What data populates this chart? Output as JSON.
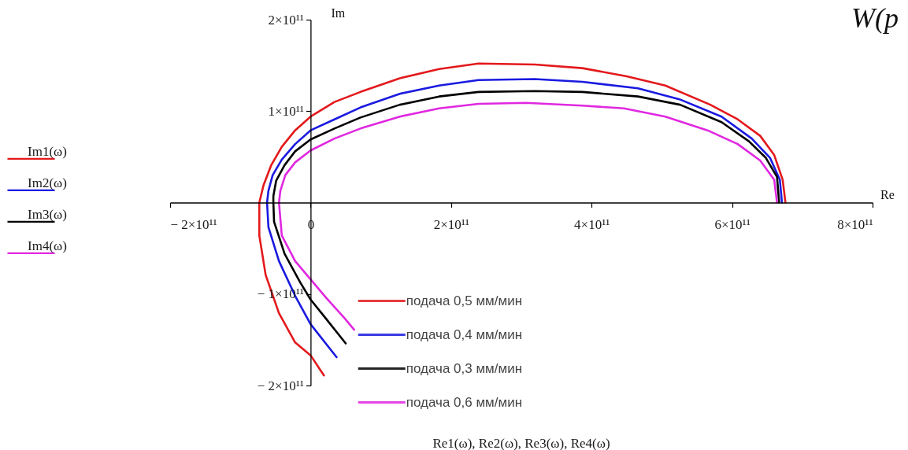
{
  "chart_data": {
    "type": "line",
    "xlabel": "Re1(ω), Re2(ω), Re3(ω), Re4(ω)",
    "ylabel": "Im1(ω)\nIm2(ω)\nIm3(ω)\nIm4(ω)",
    "annotations": [
      "Im",
      "Re",
      "W(p"
    ],
    "xlim": [
      -200000000000.0,
      800000000000.0
    ],
    "ylim": [
      -200000000000.0,
      200000000000.0
    ],
    "xticks": [
      {
        "value": -200000000000.0,
        "label": "− 2×10¹¹"
      },
      0,
      {
        "value": 200000000000.0,
        "label": "2×10¹¹"
      },
      {
        "value": 400000000000.0,
        "label": "4×10¹¹"
      },
      {
        "value": 600000000000.0,
        "label": "6×10¹¹"
      },
      {
        "value": 800000000000.0,
        "label": "8×10¹¹"
      }
    ],
    "yticks": [
      {
        "value": -200000000000.0,
        "label": "− 2×10¹¹"
      },
      {
        "value": -100000000000.0,
        "label": "− 1×10¹¹"
      },
      {
        "value": 100000000000.0,
        "label": "1×10¹¹"
      },
      {
        "value": 200000000000.0,
        "label": "2×10¹¹"
      }
    ],
    "legend": "bottom",
    "series": [
      {
        "name": "подача 0,5 мм/мин",
        "color": "#e3191c",
        "x": [
          676000000000.0,
          672000000000.0,
          660000000000.0,
          640000000000.0,
          608000000000.0,
          569000000000.0,
          505000000000.0,
          450000000000.0,
          387000000000.0,
          319000000000.0,
          239000000000.0,
          183000000000.0,
          127000000000.0,
          71000000000.0,
          34000000000.0,
          0,
          -22000000000.0,
          -41000000000.0,
          -56000000000.0,
          -67000000000.0,
          -73000000000.0,
          -73000000000.0,
          -64000000000.0,
          -45000000000.0,
          -22000000000.0,
          0,
          19000000000.0
        ],
        "values": [
          0,
          25000000000.0,
          52000000000.0,
          73000000000.0,
          91000000000.0,
          107000000000.0,
          128000000000.0,
          138000000000.0,
          147000000000.0,
          151000000000.0,
          152000000000.0,
          146000000000.0,
          136000000000.0,
          121000000000.0,
          110000000000.0,
          94000000000.0,
          79000000000.0,
          61000000000.0,
          41000000000.0,
          19000000000.0,
          0,
          -36000000000.0,
          -79000000000.0,
          -121000000000.0,
          -153000000000.0,
          -167000000000.0,
          -189000000000.0
        ]
      },
      {
        "name": "подача 0,4 мм/мин",
        "color": "#1a1ae0",
        "x": [
          671000000000.0,
          668000000000.0,
          654000000000.0,
          628000000000.0,
          585000000000.0,
          525000000000.0,
          466000000000.0,
          387000000000.0,
          319000000000.0,
          239000000000.0,
          183000000000.0,
          127000000000.0,
          71000000000.0,
          34000000000.0,
          0,
          -22000000000.0,
          -41000000000.0,
          -54000000000.0,
          -60000000000.0,
          -62000000000.0,
          -60000000000.0,
          -45000000000.0,
          -22000000000.0,
          0,
          37000000000.0
        ],
        "values": [
          0,
          25000000000.0,
          49000000000.0,
          70000000000.0,
          94000000000.0,
          113000000000.0,
          125000000000.0,
          132000000000.0,
          135000000000.0,
          134000000000.0,
          128000000000.0,
          119000000000.0,
          104000000000.0,
          91000000000.0,
          79000000000.0,
          64000000000.0,
          47000000000.0,
          30000000000.0,
          13000000000.0,
          0,
          -27000000000.0,
          -64000000000.0,
          -102000000000.0,
          -133000000000.0,
          -169000000000.0
        ]
      },
      {
        "name": "подача 0,3 мм/мин",
        "color": "#000000",
        "x": [
          667000000000.0,
          664000000000.0,
          648000000000.0,
          624000000000.0,
          585000000000.0,
          526000000000.0,
          466000000000.0,
          387000000000.0,
          319000000000.0,
          239000000000.0,
          183000000000.0,
          127000000000.0,
          71000000000.0,
          34000000000.0,
          0,
          -22000000000.0,
          -37000000000.0,
          -49000000000.0,
          -53000000000.0,
          -53000000000.0,
          -52000000000.0,
          -37000000000.0,
          -15000000000.0,
          0,
          22000000000.0,
          50000000000.0
        ],
        "values": [
          0,
          28000000000.0,
          49000000000.0,
          67000000000.0,
          88000000000.0,
          107000000000.0,
          116000000000.0,
          121000000000.0,
          122000000000.0,
          121000000000.0,
          116000000000.0,
          107000000000.0,
          93000000000.0,
          81000000000.0,
          69000000000.0,
          56000000000.0,
          41000000000.0,
          24000000000.0,
          7000000000.0,
          0,
          -21000000000.0,
          -56000000000.0,
          -87000000000.0,
          -106000000000.0,
          -127000000000.0,
          -154000000000.0
        ]
      },
      {
        "name": "подача 0,6 мм/мин",
        "color": "#e028e0",
        "x": [
          664000000000.0,
          660000000000.0,
          640000000000.0,
          608000000000.0,
          565000000000.0,
          505000000000.0,
          446000000000.0,
          387000000000.0,
          307000000000.0,
          239000000000.0,
          183000000000.0,
          127000000000.0,
          71000000000.0,
          34000000000.0,
          0,
          -22000000000.0,
          -36000000000.0,
          -43000000000.0,
          -45000000000.0,
          -41000000000.0,
          -22000000000.0,
          0,
          22000000000.0,
          49000000000.0,
          62000000000.0
        ],
        "values": [
          0,
          25000000000.0,
          46000000000.0,
          64000000000.0,
          79000000000.0,
          94000000000.0,
          103000000000.0,
          106000000000.0,
          109000000000.0,
          108000000000.0,
          103000000000.0,
          94000000000.0,
          81000000000.0,
          70000000000.0,
          57000000000.0,
          44000000000.0,
          30000000000.0,
          13000000000.0,
          0,
          -36000000000.0,
          -64000000000.0,
          -84000000000.0,
          -104000000000.0,
          -127000000000.0,
          -139000000000.0
        ]
      }
    ]
  }
}
